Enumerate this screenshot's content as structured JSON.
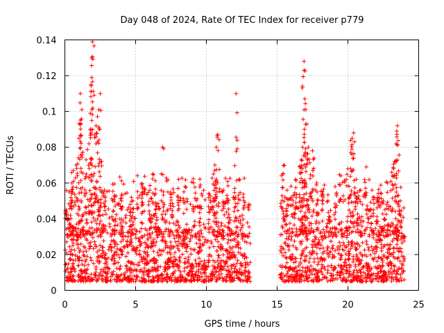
{
  "chart_data": {
    "type": "scatter",
    "title": "Day 048 of 2024, Rate Of TEC Index for receiver p779",
    "xlabel": "GPS time / hours",
    "ylabel": "ROTI / TECUs",
    "xlim": [
      0,
      25
    ],
    "ylim": [
      0,
      0.14
    ],
    "x_ticks": [
      0,
      5,
      10,
      15,
      20,
      25
    ],
    "x_tick_labels": [
      "0",
      "5",
      "10",
      "15",
      "20",
      "25"
    ],
    "y_ticks": [
      0,
      0.02,
      0.04,
      0.06,
      0.08,
      0.1,
      0.12,
      0.14
    ],
    "y_tick_labels": [
      "0",
      "0.02",
      "0.04",
      "0.06",
      "0.08",
      "0.1",
      "0.12",
      "0.14"
    ],
    "grid": true,
    "marker": "plus",
    "marker_color": "#ff0000",
    "data_gap_hours": [
      13.1,
      15.2
    ],
    "series": [
      {
        "name": "ROTI",
        "points": [
          [
            0.1,
            0.045
          ],
          [
            0.3,
            0.055
          ],
          [
            0.5,
            0.06
          ],
          [
            0.6,
            0.067
          ],
          [
            0.8,
            0.07
          ],
          [
            1.0,
            0.085
          ],
          [
            1.1,
            0.093
          ],
          [
            1.2,
            0.101
          ],
          [
            1.1,
            0.11
          ],
          [
            1.5,
            0.073
          ],
          [
            1.7,
            0.082
          ],
          [
            1.8,
            0.099
          ],
          [
            1.85,
            0.115
          ],
          [
            1.9,
            0.119
          ],
          [
            1.9,
            0.13
          ],
          [
            1.95,
            0.139
          ],
          [
            2.1,
            0.087
          ],
          [
            2.2,
            0.092
          ],
          [
            2.4,
            0.101
          ],
          [
            2.5,
            0.11
          ],
          [
            2.4,
            0.084
          ],
          [
            2.6,
            0.072
          ],
          [
            2.8,
            0.056
          ],
          [
            3.5,
            0.053
          ],
          [
            4.0,
            0.05
          ],
          [
            4.7,
            0.052
          ],
          [
            5.5,
            0.058
          ],
          [
            6.0,
            0.056
          ],
          [
            6.2,
            0.065
          ],
          [
            6.4,
            0.054
          ],
          [
            6.6,
            0.047
          ],
          [
            6.9,
            0.08
          ],
          [
            7.5,
            0.052
          ],
          [
            8.0,
            0.057
          ],
          [
            8.5,
            0.058
          ],
          [
            9.1,
            0.06
          ],
          [
            9.6,
            0.047
          ],
          [
            10.2,
            0.054
          ],
          [
            10.5,
            0.065
          ],
          [
            10.6,
            0.07
          ],
          [
            10.7,
            0.08
          ],
          [
            10.8,
            0.087
          ],
          [
            11.2,
            0.056
          ],
          [
            11.5,
            0.05
          ],
          [
            12.0,
            0.057
          ],
          [
            12.1,
            0.11
          ],
          [
            12.3,
            0.062
          ],
          [
            12.6,
            0.052
          ],
          [
            15.4,
            0.065
          ],
          [
            15.5,
            0.07
          ],
          [
            15.7,
            0.056
          ],
          [
            16.0,
            0.052
          ],
          [
            16.3,
            0.062
          ],
          [
            16.6,
            0.069
          ],
          [
            16.7,
            0.073
          ],
          [
            16.8,
            0.08
          ],
          [
            16.9,
            0.101
          ],
          [
            16.95,
            0.107
          ],
          [
            16.9,
            0.123
          ],
          [
            16.9,
            0.128
          ],
          [
            17.1,
            0.093
          ],
          [
            17.2,
            0.08
          ],
          [
            17.5,
            0.078
          ],
          [
            17.8,
            0.06
          ],
          [
            18.2,
            0.055
          ],
          [
            18.6,
            0.05
          ],
          [
            19.1,
            0.058
          ],
          [
            19.5,
            0.064
          ],
          [
            20.0,
            0.068
          ],
          [
            20.2,
            0.077
          ],
          [
            20.3,
            0.085
          ],
          [
            20.4,
            0.088
          ],
          [
            20.6,
            0.062
          ],
          [
            20.9,
            0.056
          ],
          [
            21.3,
            0.069
          ],
          [
            21.7,
            0.056
          ],
          [
            22.1,
            0.052
          ],
          [
            22.5,
            0.05
          ],
          [
            22.8,
            0.06
          ],
          [
            23.1,
            0.066
          ],
          [
            23.3,
            0.072
          ],
          [
            23.4,
            0.082
          ],
          [
            23.45,
            0.089
          ],
          [
            23.5,
            0.092
          ],
          [
            23.7,
            0.05
          ],
          [
            23.9,
            0.03
          ]
        ],
        "bulk_range": [
          0.005,
          0.035
        ]
      }
    ]
  }
}
